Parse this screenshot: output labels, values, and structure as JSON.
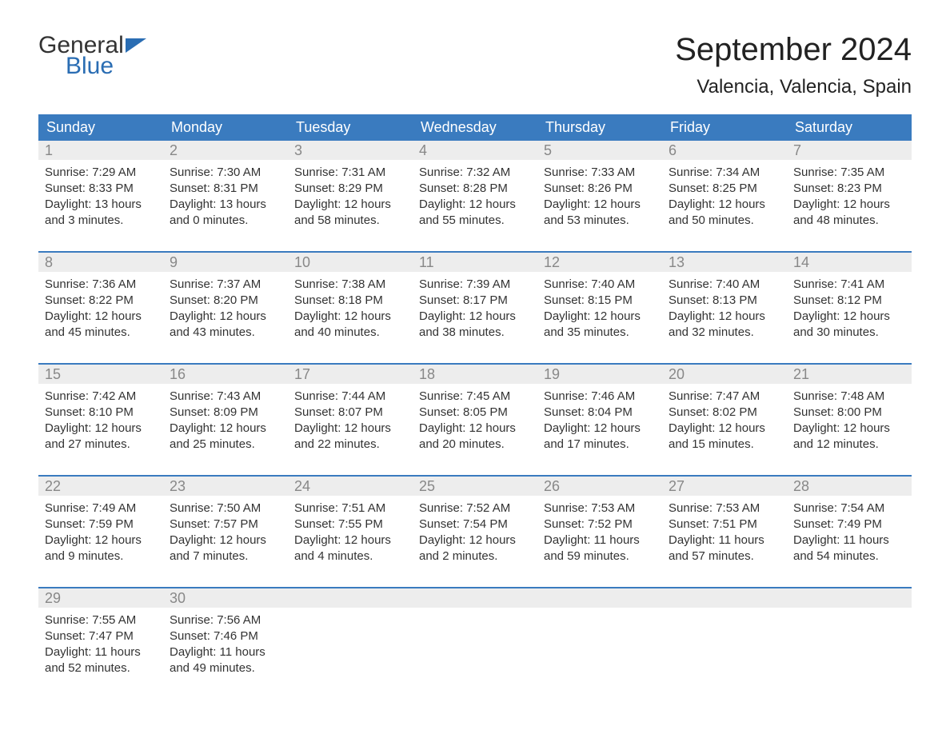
{
  "logo": {
    "word1": "General",
    "word2": "Blue",
    "text_color": "#333333",
    "accent_color": "#2a6db3"
  },
  "title": "September 2024",
  "location": "Valencia, Valencia, Spain",
  "colors": {
    "header_bg": "#3a7bbf",
    "header_text": "#ffffff",
    "number_bg": "#ededed",
    "number_text": "#888888",
    "body_text": "#333333",
    "divider": "#3a7bbf"
  },
  "day_names": [
    "Sunday",
    "Monday",
    "Tuesday",
    "Wednesday",
    "Thursday",
    "Friday",
    "Saturday"
  ],
  "weeks": [
    [
      {
        "n": "1",
        "sunrise": "Sunrise: 7:29 AM",
        "sunset": "Sunset: 8:33 PM",
        "day1": "Daylight: 13 hours",
        "day2": "and 3 minutes."
      },
      {
        "n": "2",
        "sunrise": "Sunrise: 7:30 AM",
        "sunset": "Sunset: 8:31 PM",
        "day1": "Daylight: 13 hours",
        "day2": "and 0 minutes."
      },
      {
        "n": "3",
        "sunrise": "Sunrise: 7:31 AM",
        "sunset": "Sunset: 8:29 PM",
        "day1": "Daylight: 12 hours",
        "day2": "and 58 minutes."
      },
      {
        "n": "4",
        "sunrise": "Sunrise: 7:32 AM",
        "sunset": "Sunset: 8:28 PM",
        "day1": "Daylight: 12 hours",
        "day2": "and 55 minutes."
      },
      {
        "n": "5",
        "sunrise": "Sunrise: 7:33 AM",
        "sunset": "Sunset: 8:26 PM",
        "day1": "Daylight: 12 hours",
        "day2": "and 53 minutes."
      },
      {
        "n": "6",
        "sunrise": "Sunrise: 7:34 AM",
        "sunset": "Sunset: 8:25 PM",
        "day1": "Daylight: 12 hours",
        "day2": "and 50 minutes."
      },
      {
        "n": "7",
        "sunrise": "Sunrise: 7:35 AM",
        "sunset": "Sunset: 8:23 PM",
        "day1": "Daylight: 12 hours",
        "day2": "and 48 minutes."
      }
    ],
    [
      {
        "n": "8",
        "sunrise": "Sunrise: 7:36 AM",
        "sunset": "Sunset: 8:22 PM",
        "day1": "Daylight: 12 hours",
        "day2": "and 45 minutes."
      },
      {
        "n": "9",
        "sunrise": "Sunrise: 7:37 AM",
        "sunset": "Sunset: 8:20 PM",
        "day1": "Daylight: 12 hours",
        "day2": "and 43 minutes."
      },
      {
        "n": "10",
        "sunrise": "Sunrise: 7:38 AM",
        "sunset": "Sunset: 8:18 PM",
        "day1": "Daylight: 12 hours",
        "day2": "and 40 minutes."
      },
      {
        "n": "11",
        "sunrise": "Sunrise: 7:39 AM",
        "sunset": "Sunset: 8:17 PM",
        "day1": "Daylight: 12 hours",
        "day2": "and 38 minutes."
      },
      {
        "n": "12",
        "sunrise": "Sunrise: 7:40 AM",
        "sunset": "Sunset: 8:15 PM",
        "day1": "Daylight: 12 hours",
        "day2": "and 35 minutes."
      },
      {
        "n": "13",
        "sunrise": "Sunrise: 7:40 AM",
        "sunset": "Sunset: 8:13 PM",
        "day1": "Daylight: 12 hours",
        "day2": "and 32 minutes."
      },
      {
        "n": "14",
        "sunrise": "Sunrise: 7:41 AM",
        "sunset": "Sunset: 8:12 PM",
        "day1": "Daylight: 12 hours",
        "day2": "and 30 minutes."
      }
    ],
    [
      {
        "n": "15",
        "sunrise": "Sunrise: 7:42 AM",
        "sunset": "Sunset: 8:10 PM",
        "day1": "Daylight: 12 hours",
        "day2": "and 27 minutes."
      },
      {
        "n": "16",
        "sunrise": "Sunrise: 7:43 AM",
        "sunset": "Sunset: 8:09 PM",
        "day1": "Daylight: 12 hours",
        "day2": "and 25 minutes."
      },
      {
        "n": "17",
        "sunrise": "Sunrise: 7:44 AM",
        "sunset": "Sunset: 8:07 PM",
        "day1": "Daylight: 12 hours",
        "day2": "and 22 minutes."
      },
      {
        "n": "18",
        "sunrise": "Sunrise: 7:45 AM",
        "sunset": "Sunset: 8:05 PM",
        "day1": "Daylight: 12 hours",
        "day2": "and 20 minutes."
      },
      {
        "n": "19",
        "sunrise": "Sunrise: 7:46 AM",
        "sunset": "Sunset: 8:04 PM",
        "day1": "Daylight: 12 hours",
        "day2": "and 17 minutes."
      },
      {
        "n": "20",
        "sunrise": "Sunrise: 7:47 AM",
        "sunset": "Sunset: 8:02 PM",
        "day1": "Daylight: 12 hours",
        "day2": "and 15 minutes."
      },
      {
        "n": "21",
        "sunrise": "Sunrise: 7:48 AM",
        "sunset": "Sunset: 8:00 PM",
        "day1": "Daylight: 12 hours",
        "day2": "and 12 minutes."
      }
    ],
    [
      {
        "n": "22",
        "sunrise": "Sunrise: 7:49 AM",
        "sunset": "Sunset: 7:59 PM",
        "day1": "Daylight: 12 hours",
        "day2": "and 9 minutes."
      },
      {
        "n": "23",
        "sunrise": "Sunrise: 7:50 AM",
        "sunset": "Sunset: 7:57 PM",
        "day1": "Daylight: 12 hours",
        "day2": "and 7 minutes."
      },
      {
        "n": "24",
        "sunrise": "Sunrise: 7:51 AM",
        "sunset": "Sunset: 7:55 PM",
        "day1": "Daylight: 12 hours",
        "day2": "and 4 minutes."
      },
      {
        "n": "25",
        "sunrise": "Sunrise: 7:52 AM",
        "sunset": "Sunset: 7:54 PM",
        "day1": "Daylight: 12 hours",
        "day2": "and 2 minutes."
      },
      {
        "n": "26",
        "sunrise": "Sunrise: 7:53 AM",
        "sunset": "Sunset: 7:52 PM",
        "day1": "Daylight: 11 hours",
        "day2": "and 59 minutes."
      },
      {
        "n": "27",
        "sunrise": "Sunrise: 7:53 AM",
        "sunset": "Sunset: 7:51 PM",
        "day1": "Daylight: 11 hours",
        "day2": "and 57 minutes."
      },
      {
        "n": "28",
        "sunrise": "Sunrise: 7:54 AM",
        "sunset": "Sunset: 7:49 PM",
        "day1": "Daylight: 11 hours",
        "day2": "and 54 minutes."
      }
    ],
    [
      {
        "n": "29",
        "sunrise": "Sunrise: 7:55 AM",
        "sunset": "Sunset: 7:47 PM",
        "day1": "Daylight: 11 hours",
        "day2": "and 52 minutes."
      },
      {
        "n": "30",
        "sunrise": "Sunrise: 7:56 AM",
        "sunset": "Sunset: 7:46 PM",
        "day1": "Daylight: 11 hours",
        "day2": "and 49 minutes."
      },
      {
        "n": "",
        "sunrise": "",
        "sunset": "",
        "day1": "",
        "day2": ""
      },
      {
        "n": "",
        "sunrise": "",
        "sunset": "",
        "day1": "",
        "day2": ""
      },
      {
        "n": "",
        "sunrise": "",
        "sunset": "",
        "day1": "",
        "day2": ""
      },
      {
        "n": "",
        "sunrise": "",
        "sunset": "",
        "day1": "",
        "day2": ""
      },
      {
        "n": "",
        "sunrise": "",
        "sunset": "",
        "day1": "",
        "day2": ""
      }
    ]
  ]
}
